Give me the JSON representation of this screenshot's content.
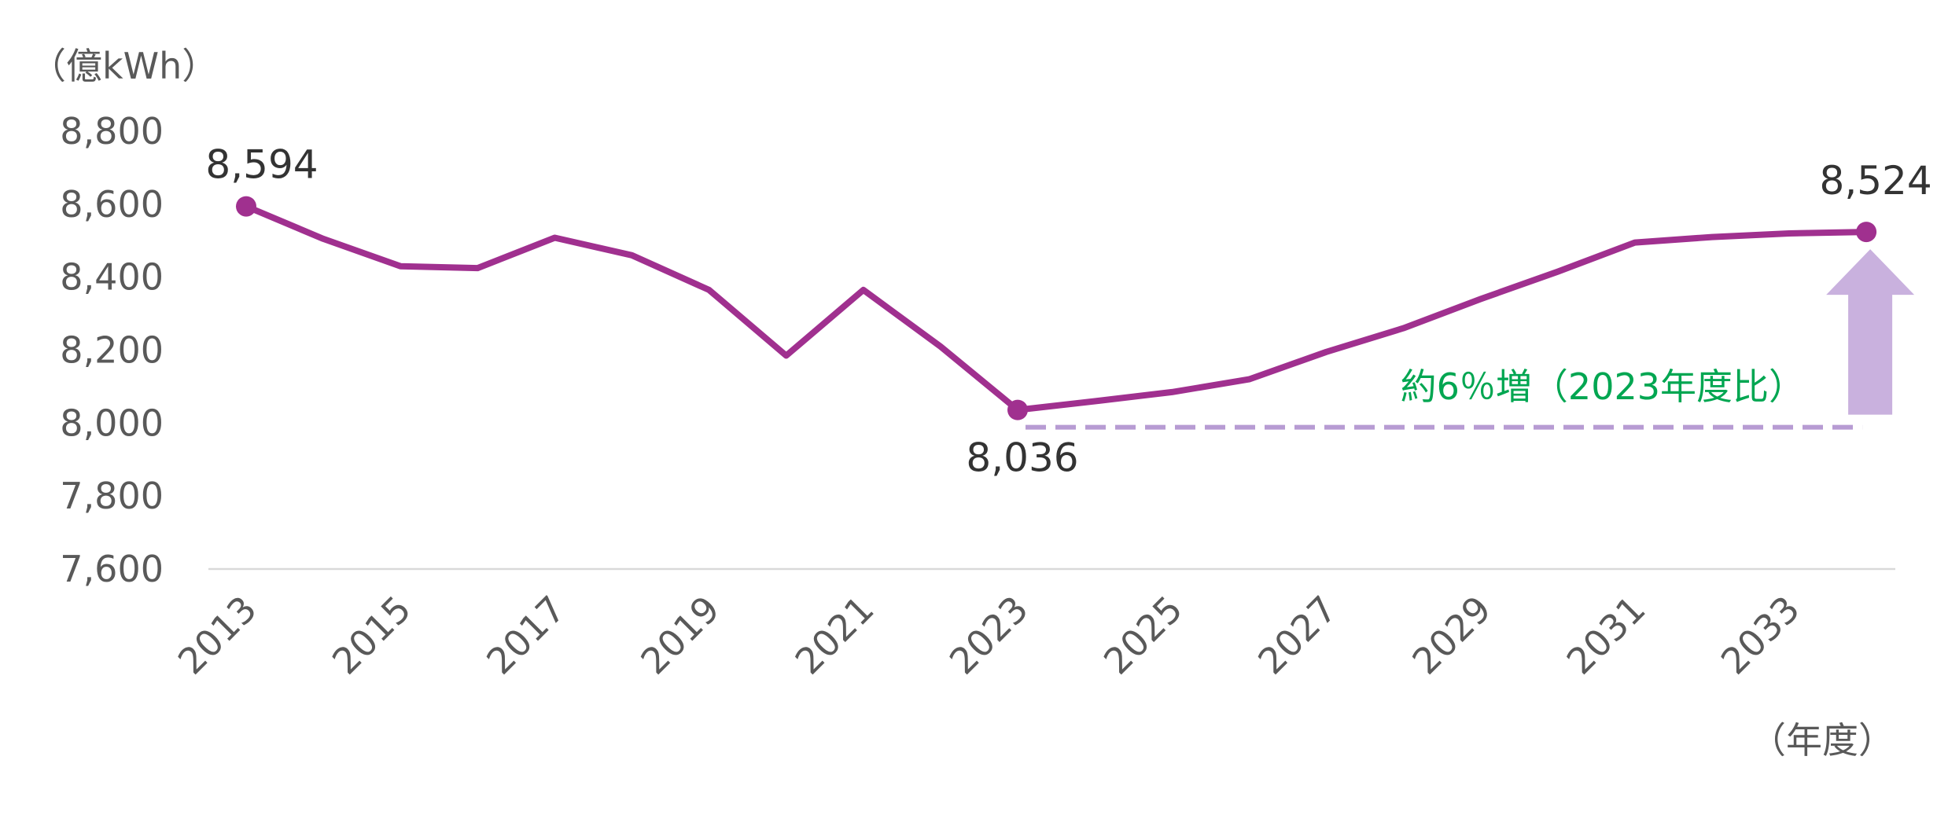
{
  "chart_data": {
    "type": "line",
    "y_unit_label": "（億kWh）",
    "x_unit_label": "（年度）",
    "x": [
      2013,
      2014,
      2015,
      2016,
      2017,
      2018,
      2019,
      2020,
      2021,
      2022,
      2023,
      2024,
      2025,
      2026,
      2027,
      2028,
      2029,
      2030,
      2031,
      2032,
      2033,
      2034
    ],
    "x_tick_labels": [
      "2013",
      "2015",
      "2017",
      "2019",
      "2021",
      "2023",
      "2025",
      "2027",
      "2029",
      "2031",
      "2033"
    ],
    "series": [
      {
        "values": [
          8594,
          8505,
          8430,
          8425,
          8508,
          8460,
          8365,
          8185,
          8365,
          8210,
          8036,
          8060,
          8085,
          8120,
          8195,
          8260,
          8340,
          8415,
          8495,
          8510,
          8520,
          8524
        ]
      }
    ],
    "ylim": [
      7600,
      8800
    ],
    "y_ticks": [
      7600,
      7800,
      8000,
      8200,
      8400,
      8600,
      8800
    ],
    "y_tick_labels": [
      "7,600",
      "7,800",
      "8,000",
      "8,200",
      "8,400",
      "8,600",
      "8,800"
    ],
    "point_labels": [
      {
        "x": 2013,
        "value": 8594,
        "text": "8,594"
      },
      {
        "x": 2023,
        "value": 8036,
        "text": "8,036"
      },
      {
        "x": 2034,
        "value": 8524,
        "text": "8,524"
      }
    ],
    "annotation": {
      "text": "約6％増（2023年度比）",
      "baseline_value": 8036,
      "color": "#00a651"
    },
    "grid": false,
    "legend": "none",
    "colors": {
      "line": "#a0308f",
      "arrow": "#c9b1de",
      "dashed": "#b79bd3",
      "axis_line": "#d9d9d9",
      "text": "#595959"
    }
  }
}
